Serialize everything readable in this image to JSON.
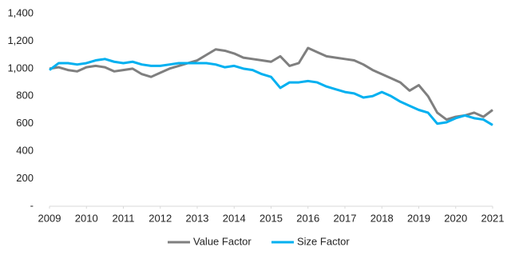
{
  "chart_data": {
    "type": "line",
    "x": [
      2009,
      2009.25,
      2009.5,
      2009.75,
      2010,
      2010.25,
      2010.5,
      2010.75,
      2011,
      2011.25,
      2011.5,
      2011.75,
      2012,
      2012.25,
      2012.5,
      2012.75,
      2013,
      2013.25,
      2013.5,
      2013.75,
      2014,
      2014.25,
      2014.5,
      2014.75,
      2015,
      2015.25,
      2015.5,
      2015.75,
      2016,
      2016.25,
      2016.5,
      2016.75,
      2017,
      2017.25,
      2017.5,
      2017.75,
      2018,
      2018.25,
      2018.5,
      2018.75,
      2019,
      2019.25,
      2019.5,
      2019.75,
      2020,
      2020.25,
      2020.5,
      2020.75,
      2021
    ],
    "series": [
      {
        "name": "Value Factor",
        "color": "#7f7f7f",
        "values": [
          1000,
          1010,
          990,
          980,
          1010,
          1020,
          1010,
          980,
          990,
          1000,
          960,
          940,
          970,
          1000,
          1020,
          1040,
          1060,
          1100,
          1140,
          1130,
          1110,
          1080,
          1070,
          1060,
          1050,
          1090,
          1020,
          1040,
          1150,
          1120,
          1090,
          1080,
          1070,
          1060,
          1030,
          990,
          960,
          930,
          900,
          840,
          880,
          800,
          680,
          630,
          650,
          660,
          680,
          650,
          700
        ]
      },
      {
        "name": "Size Factor",
        "color": "#00b0f0",
        "values": [
          990,
          1040,
          1040,
          1030,
          1040,
          1060,
          1070,
          1050,
          1040,
          1050,
          1030,
          1020,
          1020,
          1030,
          1040,
          1040,
          1040,
          1040,
          1030,
          1010,
          1020,
          1000,
          990,
          960,
          940,
          860,
          900,
          900,
          910,
          900,
          870,
          850,
          830,
          820,
          790,
          800,
          830,
          800,
          760,
          730,
          700,
          680,
          600,
          610,
          640,
          660,
          640,
          630,
          590
        ]
      }
    ],
    "xlim": [
      2009,
      2021
    ],
    "xticks": [
      2009,
      2010,
      2011,
      2012,
      2013,
      2014,
      2015,
      2016,
      2017,
      2018,
      2019,
      2020,
      2021
    ],
    "ylim": [
      0,
      1400
    ],
    "yticks": [
      {
        "value": 0,
        "label": "-"
      },
      200,
      400,
      600,
      800,
      {
        "value": 1000,
        "label": "1,000"
      },
      {
        "value": 1200,
        "label": "1,200"
      },
      {
        "value": 1400,
        "label": "1,400"
      }
    ],
    "legend": "bottom"
  }
}
